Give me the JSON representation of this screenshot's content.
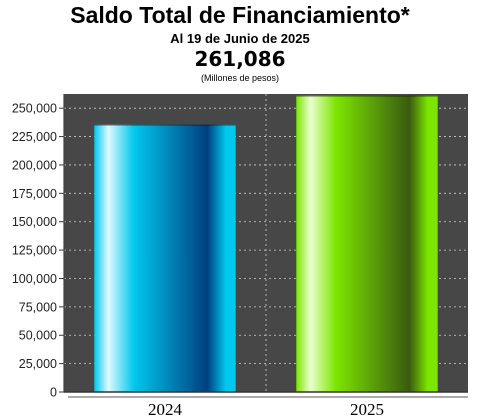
{
  "header": {
    "title": "Saldo Total de Financiamiento*",
    "subtitle": "Al 19 de Junio de 2025",
    "total": "261,086",
    "unit": "(Millones de pesos)"
  },
  "colors": {
    "plot_background": "#474747",
    "grid": "#cfcfcf",
    "bar_2024_light": "#dff9ff",
    "bar_2024_mid": "#00c8ee",
    "bar_2024_dark": "#003f7f",
    "bar_2025_light": "#eaffcf",
    "bar_2025_mid": "#7ce600",
    "bar_2025_dark": "#3a5a10"
  },
  "chart_data": {
    "type": "bar",
    "categories": [
      "2024",
      "2025"
    ],
    "values": [
      235500,
      261086
    ],
    "ylim": [
      0,
      262500
    ],
    "yticks": [
      0,
      25000,
      50000,
      75000,
      100000,
      125000,
      150000,
      175000,
      200000,
      225000,
      250000
    ],
    "ytick_labels": [
      "0",
      "25,000",
      "50,000",
      "75,000",
      "100,000",
      "125,000",
      "150,000",
      "175,000",
      "200,000",
      "225,000",
      "250,000"
    ],
    "grid": true,
    "legend": "none"
  }
}
